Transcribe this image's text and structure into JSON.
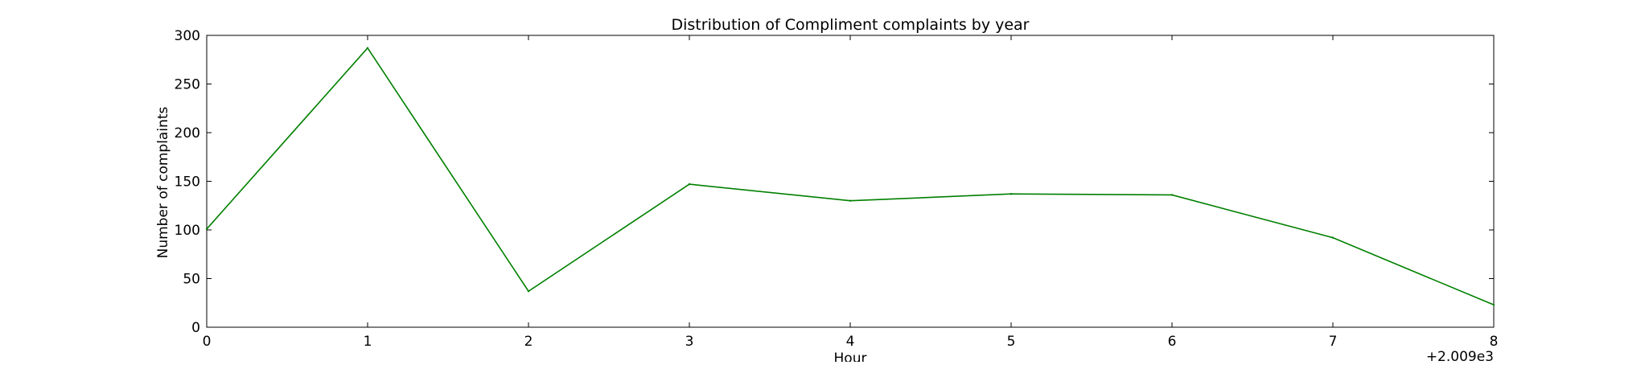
{
  "chart_data": {
    "type": "line",
    "title": "Distribution of  Compliment complaints by year",
    "xlabel": "Hour",
    "ylabel": "Number of complaints",
    "x_offset_label": "+2.009e3",
    "x": [
      0,
      1,
      2,
      3,
      4,
      5,
      6,
      7,
      8
    ],
    "x_tick_labels": [
      "0",
      "1",
      "2",
      "3",
      "4",
      "5",
      "6",
      "7",
      "8"
    ],
    "xlim": [
      0,
      8
    ],
    "ylim": [
      0,
      300
    ],
    "y_ticks": [
      0,
      50,
      100,
      150,
      200,
      250,
      300
    ],
    "y_tick_labels": [
      "0",
      "50",
      "100",
      "150",
      "200",
      "250",
      "300"
    ],
    "grid": false,
    "series": [
      {
        "color": "#008000",
        "values": [
          101,
          287,
          37,
          147,
          130,
          137,
          136,
          92,
          23
        ]
      }
    ]
  }
}
